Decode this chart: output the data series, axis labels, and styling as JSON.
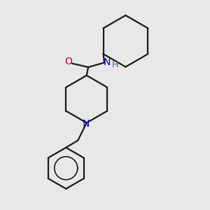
{
  "background_color": "#e8e8e8",
  "bond_color": "#1a1a1a",
  "N_color": "#0000cc",
  "O_color": "#cc0000",
  "H_color": "#008080",
  "line_width": 1.6,
  "figsize": [
    3.0,
    3.0
  ],
  "dpi": 100,
  "xlim": [
    0.0,
    10.0
  ],
  "ylim": [
    0.0,
    10.0
  ]
}
